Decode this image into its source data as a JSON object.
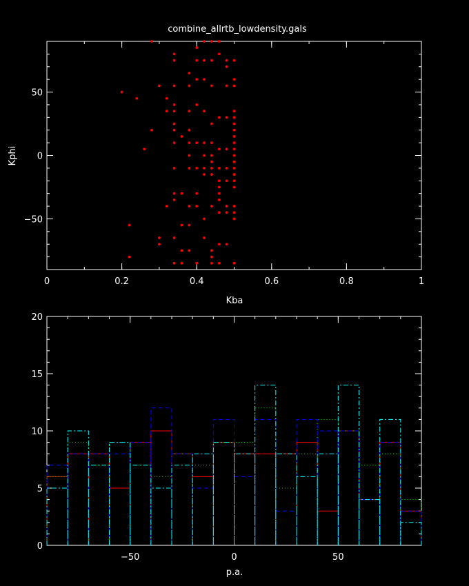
{
  "title": "combine_allrtb_lowdensity.gals",
  "chart_data": [
    {
      "type": "scatter",
      "xlabel": "Kba",
      "ylabel": "Kphi",
      "xlim": [
        0,
        1
      ],
      "ylim": [
        -90,
        90
      ],
      "xticks": [
        0,
        0.2,
        0.4,
        0.6,
        0.8,
        1
      ],
      "yticks": [
        -50,
        0,
        50
      ],
      "xtick_labels": [
        "0",
        "0.2",
        "0.4",
        "0.6",
        "0.8",
        "1"
      ],
      "ytick_labels": [
        "−50",
        "0",
        "50"
      ],
      "color": "#ff0000",
      "points": [
        [
          0.2,
          50
        ],
        [
          0.22,
          -55
        ],
        [
          0.22,
          -80
        ],
        [
          0.24,
          45
        ],
        [
          0.26,
          5
        ],
        [
          0.28,
          20
        ],
        [
          0.28,
          90
        ],
        [
          0.3,
          55
        ],
        [
          0.3,
          -65
        ],
        [
          0.3,
          -70
        ],
        [
          0.32,
          45
        ],
        [
          0.32,
          35
        ],
        [
          0.32,
          -40
        ],
        [
          0.34,
          80
        ],
        [
          0.34,
          75
        ],
        [
          0.34,
          55
        ],
        [
          0.34,
          40
        ],
        [
          0.34,
          35
        ],
        [
          0.34,
          25
        ],
        [
          0.34,
          20
        ],
        [
          0.34,
          10
        ],
        [
          0.34,
          -10
        ],
        [
          0.34,
          -30
        ],
        [
          0.34,
          -35
        ],
        [
          0.34,
          -65
        ],
        [
          0.34,
          -85
        ],
        [
          0.36,
          15
        ],
        [
          0.36,
          -30
        ],
        [
          0.36,
          -55
        ],
        [
          0.36,
          -75
        ],
        [
          0.36,
          -85
        ],
        [
          0.38,
          65
        ],
        [
          0.38,
          55
        ],
        [
          0.38,
          35
        ],
        [
          0.38,
          20
        ],
        [
          0.38,
          10
        ],
        [
          0.38,
          0
        ],
        [
          0.38,
          -10
        ],
        [
          0.38,
          -40
        ],
        [
          0.38,
          -55
        ],
        [
          0.38,
          -75
        ],
        [
          0.4,
          85
        ],
        [
          0.4,
          75
        ],
        [
          0.4,
          60
        ],
        [
          0.4,
          40
        ],
        [
          0.4,
          10
        ],
        [
          0.4,
          -10
        ],
        [
          0.4,
          -30
        ],
        [
          0.4,
          -40
        ],
        [
          0.4,
          -85
        ],
        [
          0.42,
          90
        ],
        [
          0.42,
          75
        ],
        [
          0.42,
          60
        ],
        [
          0.42,
          35
        ],
        [
          0.42,
          10
        ],
        [
          0.42,
          0
        ],
        [
          0.42,
          -10
        ],
        [
          0.42,
          -15
        ],
        [
          0.42,
          -50
        ],
        [
          0.42,
          -65
        ],
        [
          0.44,
          90
        ],
        [
          0.44,
          75
        ],
        [
          0.44,
          55
        ],
        [
          0.44,
          25
        ],
        [
          0.44,
          10
        ],
        [
          0.44,
          0
        ],
        [
          0.44,
          -5
        ],
        [
          0.44,
          -10
        ],
        [
          0.44,
          -15
        ],
        [
          0.44,
          -40
        ],
        [
          0.44,
          -75
        ],
        [
          0.44,
          -80
        ],
        [
          0.44,
          -85
        ],
        [
          0.46,
          90
        ],
        [
          0.46,
          80
        ],
        [
          0.46,
          30
        ],
        [
          0.46,
          5
        ],
        [
          0.46,
          -10
        ],
        [
          0.46,
          -20
        ],
        [
          0.46,
          -25
        ],
        [
          0.46,
          -30
        ],
        [
          0.46,
          -35
        ],
        [
          0.46,
          -45
        ],
        [
          0.46,
          -70
        ],
        [
          0.46,
          -85
        ],
        [
          0.48,
          75
        ],
        [
          0.48,
          70
        ],
        [
          0.48,
          55
        ],
        [
          0.48,
          30
        ],
        [
          0.48,
          5
        ],
        [
          0.48,
          -10
        ],
        [
          0.48,
          -20
        ],
        [
          0.48,
          -40
        ],
        [
          0.48,
          -45
        ],
        [
          0.48,
          -70
        ],
        [
          0.5,
          75
        ],
        [
          0.5,
          60
        ],
        [
          0.5,
          55
        ],
        [
          0.5,
          35
        ],
        [
          0.5,
          30
        ],
        [
          0.5,
          25
        ],
        [
          0.5,
          20
        ],
        [
          0.5,
          15
        ],
        [
          0.5,
          10
        ],
        [
          0.5,
          5
        ],
        [
          0.5,
          0
        ],
        [
          0.5,
          -5
        ],
        [
          0.5,
          -10
        ],
        [
          0.5,
          -15
        ],
        [
          0.5,
          -20
        ],
        [
          0.5,
          -25
        ],
        [
          0.5,
          -40
        ],
        [
          0.5,
          -45
        ],
        [
          0.5,
          -50
        ],
        [
          0.5,
          -85
        ]
      ]
    },
    {
      "type": "histogram",
      "xlabel": "p.a.",
      "ylabel": "",
      "xlim": [
        -90,
        90
      ],
      "ylim": [
        0,
        20
      ],
      "xticks": [
        -50,
        0,
        50
      ],
      "yticks": [
        0,
        5,
        10,
        15,
        20
      ],
      "xtick_labels": [
        "−50",
        "0",
        "50"
      ],
      "ytick_labels": [
        "0",
        "5",
        "10",
        "15",
        "20"
      ],
      "bin_edges": [
        -90,
        -80,
        -70,
        -60,
        -50,
        -40,
        -30,
        -20,
        -10,
        0,
        10,
        20,
        30,
        40,
        50,
        60,
        70,
        80,
        90
      ],
      "series": [
        {
          "color": "#ff0000",
          "dash": "",
          "values": [
            6,
            8,
            8,
            5,
            9,
            10,
            8,
            6,
            9,
            8,
            8,
            8,
            9,
            3,
            10,
            4,
            9,
            3
          ]
        },
        {
          "color": "#00ff00",
          "dash": "1,3",
          "values": [
            6,
            9,
            7,
            9,
            7,
            6,
            8,
            7,
            9,
            9,
            12,
            5,
            8,
            11,
            10,
            7,
            8,
            4
          ]
        },
        {
          "color": "#0000ff",
          "dash": "6,4",
          "values": [
            7,
            8,
            8,
            8,
            9,
            12,
            8,
            5,
            11,
            6,
            11,
            3,
            11,
            10,
            10,
            4,
            9,
            3
          ]
        },
        {
          "color": "#00ffff",
          "dash": "7,3,2,3",
          "values": [
            5,
            10,
            7,
            9,
            7,
            5,
            7,
            8,
            9,
            8,
            14,
            8,
            6,
            8,
            14,
            4,
            11,
            2
          ]
        }
      ]
    }
  ]
}
